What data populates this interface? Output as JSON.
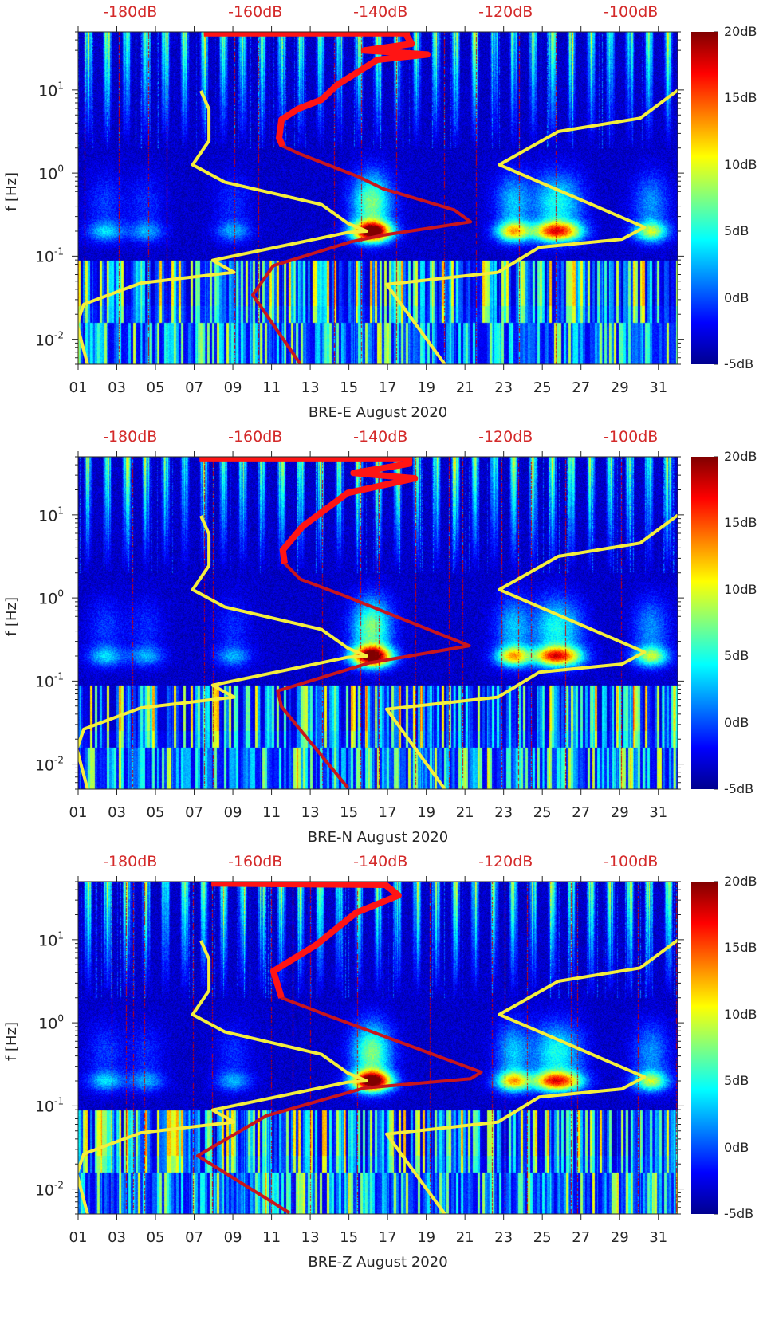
{
  "chart_data": [
    {
      "type": "heatmap",
      "xlabel": "BRE-E August 2020",
      "ylabel": "f [Hz]",
      "xlim": [
        1,
        32
      ],
      "ylim": [
        0.005,
        50
      ],
      "yscale": "log",
      "x_ticks": [
        "01",
        "03",
        "05",
        "07",
        "09",
        "11",
        "13",
        "15",
        "17",
        "19",
        "21",
        "23",
        "25",
        "27",
        "29",
        "31"
      ],
      "y_ticks": [
        {
          "base": "10",
          "exp": "1",
          "value": 10
        },
        {
          "base": "10",
          "exp": "0",
          "value": 1
        },
        {
          "base": "10",
          "exp": "-1",
          "value": 0.1
        },
        {
          "base": "10",
          "exp": "-2",
          "value": 0.01
        }
      ],
      "top_axis": {
        "labels": [
          "-180dB",
          "-160dB",
          "-140dB",
          "-120dB",
          "-100dB"
        ],
        "values": [
          -180,
          -160,
          -140,
          -120,
          -100
        ],
        "lim": [
          -187.8,
          -92
        ],
        "color": "#d42a2a"
      },
      "colorbar": {
        "labels": [
          "20dB",
          "15dB",
          "10dB",
          "5dB",
          "0dB",
          "-5dB"
        ],
        "values": [
          20,
          15,
          10,
          5,
          0,
          -5
        ],
        "lim": [
          -5,
          20
        ],
        "colormap": "jet"
      },
      "curves": {
        "yellow_low": {
          "color": "#f4ee3c",
          "points": [
            [
              -168.2,
              9.75
            ],
            [
              -166.9,
              5.9
            ],
            [
              -166.9,
              2.44
            ],
            [
              -169.5,
              1.26
            ],
            [
              -164.4,
              0.78
            ],
            [
              -148.9,
              0.417
            ],
            [
              -144.7,
              0.249
            ],
            [
              -141.7,
              0.2
            ],
            [
              -144.7,
              0.193
            ],
            [
              -166.3,
              0.089
            ],
            [
              -162.9,
              0.064
            ],
            [
              -177.8,
              0.0475
            ],
            [
              -186.9,
              0.0264
            ],
            [
              -188.0,
              0.0152
            ],
            [
              -186.3,
              0.005
            ]
          ]
        },
        "yellow_high": {
          "color": "#f4ee3c",
          "points": [
            [
              -92.0,
              9.9
            ],
            [
              -98.0,
              4.57
            ],
            [
              -111.1,
              3.16
            ],
            [
              -120.5,
              1.26
            ],
            [
              -97.3,
              0.223
            ],
            [
              -100.9,
              0.16
            ],
            [
              -114.1,
              0.128
            ],
            [
              -120.7,
              0.064
            ],
            [
              -138.5,
              0.0458
            ],
            [
              -129.2,
              0.005
            ]
          ]
        },
        "red": {
          "color": "#c8161d",
          "bright": "#ff1414",
          "points": [
            [
              -167.7,
              48.2
            ],
            [
              -135.3,
              48.2
            ],
            [
              -135.3,
              44.8
            ],
            [
              -134.5,
              35.9
            ],
            [
              -142.1,
              29.9
            ],
            [
              -132.0,
              26.7
            ],
            [
              -140.0,
              23.1
            ],
            [
              -146.4,
              11.5
            ],
            [
              -148.9,
              7.65
            ],
            [
              -152.7,
              5.9
            ],
            [
              -155.3,
              4.4
            ],
            [
              -155.7,
              2.63
            ],
            [
              -155.1,
              2.11
            ],
            [
              -152.3,
              1.69
            ],
            [
              -143.0,
              0.904
            ],
            [
              -139.1,
              0.649
            ],
            [
              -127.7,
              0.36
            ],
            [
              -125.1,
              0.259
            ],
            [
              -139.1,
              0.179
            ],
            [
              -144.2,
              0.149
            ],
            [
              -156.6,
              0.0769
            ],
            [
              -159.9,
              0.0342
            ],
            [
              -152.3,
              0.00504
            ]
          ]
        }
      }
    },
    {
      "type": "heatmap",
      "xlabel": "BRE-N August 2020",
      "ylabel": "f [Hz]",
      "xlim": [
        1,
        32
      ],
      "ylim": [
        0.005,
        50
      ],
      "yscale": "log",
      "x_ticks": [
        "01",
        "03",
        "05",
        "07",
        "09",
        "11",
        "13",
        "15",
        "17",
        "19",
        "21",
        "23",
        "25",
        "27",
        "29",
        "31"
      ],
      "y_ticks": [
        {
          "base": "10",
          "exp": "1",
          "value": 10
        },
        {
          "base": "10",
          "exp": "0",
          "value": 1
        },
        {
          "base": "10",
          "exp": "-1",
          "value": 0.1
        },
        {
          "base": "10",
          "exp": "-2",
          "value": 0.01
        }
      ],
      "top_axis": {
        "labels": [
          "-180dB",
          "-160dB",
          "-140dB",
          "-120dB",
          "-100dB"
        ],
        "values": [
          -180,
          -160,
          -140,
          -120,
          -100
        ],
        "lim": [
          -187.8,
          -92
        ],
        "color": "#d42a2a"
      },
      "colorbar": {
        "labels": [
          "20dB",
          "15dB",
          "10dB",
          "5dB",
          "0dB",
          "-5dB"
        ],
        "values": [
          20,
          15,
          10,
          5,
          0,
          -5
        ],
        "lim": [
          -5,
          20
        ],
        "colormap": "jet"
      },
      "curves": {
        "yellow_low": {
          "color": "#f4ee3c",
          "points": [
            [
              -168.2,
              9.75
            ],
            [
              -166.9,
              5.9
            ],
            [
              -166.9,
              2.44
            ],
            [
              -169.5,
              1.26
            ],
            [
              -164.4,
              0.78
            ],
            [
              -148.9,
              0.417
            ],
            [
              -144.7,
              0.249
            ],
            [
              -141.7,
              0.2
            ],
            [
              -144.7,
              0.193
            ],
            [
              -166.3,
              0.089
            ],
            [
              -162.9,
              0.064
            ],
            [
              -177.8,
              0.0475
            ],
            [
              -186.9,
              0.0264
            ],
            [
              -188.0,
              0.0152
            ],
            [
              -186.3,
              0.005
            ]
          ]
        },
        "yellow_high": {
          "color": "#f4ee3c",
          "points": [
            [
              -92.0,
              9.9
            ],
            [
              -98.0,
              4.57
            ],
            [
              -111.1,
              3.16
            ],
            [
              -120.5,
              1.26
            ],
            [
              -97.3,
              0.223
            ],
            [
              -100.9,
              0.16
            ],
            [
              -114.1,
              0.128
            ],
            [
              -120.7,
              0.064
            ],
            [
              -138.5,
              0.0458
            ],
            [
              -129.2,
              0.005
            ]
          ]
        },
        "red": {
          "color": "#c8161d",
          "bright": "#ff1414",
          "points": [
            [
              -168.4,
              47.9
            ],
            [
              -134.9,
              47.9
            ],
            [
              -134.9,
              41.3
            ],
            [
              -143.8,
              31.9
            ],
            [
              -134.0,
              27.5
            ],
            [
              -144.7,
              18.4
            ],
            [
              -151.9,
              7.31
            ],
            [
              -155.1,
              3.78
            ],
            [
              -154.8,
              2.61
            ],
            [
              -152.3,
              1.68
            ],
            [
              -145.5,
              1.08
            ],
            [
              -125.3,
              0.266
            ],
            [
              -141.3,
              0.165
            ],
            [
              -155.9,
              0.0762
            ],
            [
              -155.3,
              0.049
            ],
            [
              -144.7,
              0.00519
            ]
          ]
        }
      }
    },
    {
      "type": "heatmap",
      "xlabel": "BRE-Z August 2020",
      "ylabel": "f [Hz]",
      "xlim": [
        1,
        32
      ],
      "ylim": [
        0.005,
        50
      ],
      "yscale": "log",
      "x_ticks": [
        "01",
        "03",
        "05",
        "07",
        "09",
        "11",
        "13",
        "15",
        "17",
        "19",
        "21",
        "23",
        "25",
        "27",
        "29",
        "31"
      ],
      "y_ticks": [
        {
          "base": "10",
          "exp": "1",
          "value": 10
        },
        {
          "base": "10",
          "exp": "0",
          "value": 1
        },
        {
          "base": "10",
          "exp": "-1",
          "value": 0.1
        },
        {
          "base": "10",
          "exp": "-2",
          "value": 0.01
        }
      ],
      "top_axis": {
        "labels": [
          "-180dB",
          "-160dB",
          "-140dB",
          "-120dB",
          "-100dB"
        ],
        "values": [
          -180,
          -160,
          -140,
          -120,
          -100
        ],
        "lim": [
          -187.8,
          -92
        ],
        "color": "#d42a2a"
      },
      "colorbar": {
        "labels": [
          "20dB",
          "15dB",
          "10dB",
          "5dB",
          "0dB",
          "-5dB"
        ],
        "values": [
          20,
          15,
          10,
          5,
          0,
          -5
        ],
        "lim": [
          -5,
          20
        ],
        "colormap": "jet"
      },
      "curves": {
        "yellow_low": {
          "color": "#f4ee3c",
          "points": [
            [
              -168.2,
              9.75
            ],
            [
              -166.9,
              5.9
            ],
            [
              -166.9,
              2.44
            ],
            [
              -169.5,
              1.26
            ],
            [
              -164.4,
              0.78
            ],
            [
              -148.9,
              0.417
            ],
            [
              -144.7,
              0.249
            ],
            [
              -141.7,
              0.2
            ],
            [
              -144.7,
              0.193
            ],
            [
              -166.3,
              0.089
            ],
            [
              -162.9,
              0.064
            ],
            [
              -177.8,
              0.0475
            ],
            [
              -186.9,
              0.0264
            ],
            [
              -188.0,
              0.0152
            ],
            [
              -186.3,
              0.005
            ]
          ]
        },
        "yellow_high": {
          "color": "#f4ee3c",
          "points": [
            [
              -92.0,
              9.9
            ],
            [
              -98.0,
              4.57
            ],
            [
              -111.1,
              3.16
            ],
            [
              -120.5,
              1.26
            ],
            [
              -97.3,
              0.223
            ],
            [
              -100.9,
              0.16
            ],
            [
              -114.1,
              0.128
            ],
            [
              -120.7,
              0.064
            ],
            [
              -138.5,
              0.0458
            ],
            [
              -129.2,
              0.005
            ]
          ]
        },
        "red": {
          "color": "#c8161d",
          "bright": "#ff1414",
          "points": [
            [
              -166.5,
              47.5
            ],
            [
              -138.7,
              45.8
            ],
            [
              -136.6,
              34.1
            ],
            [
              -143.4,
              21.1
            ],
            [
              -149.7,
              8.73
            ],
            [
              -156.6,
              4.19
            ],
            [
              -155.3,
              2.0
            ],
            [
              -147.6,
              1.2
            ],
            [
              -123.4,
              0.255
            ],
            [
              -125.1,
              0.212
            ],
            [
              -142.1,
              0.164
            ],
            [
              -157.8,
              0.0757
            ],
            [
              -168.7,
              0.0251
            ],
            [
              -154.0,
              0.00514
            ]
          ]
        }
      }
    }
  ]
}
